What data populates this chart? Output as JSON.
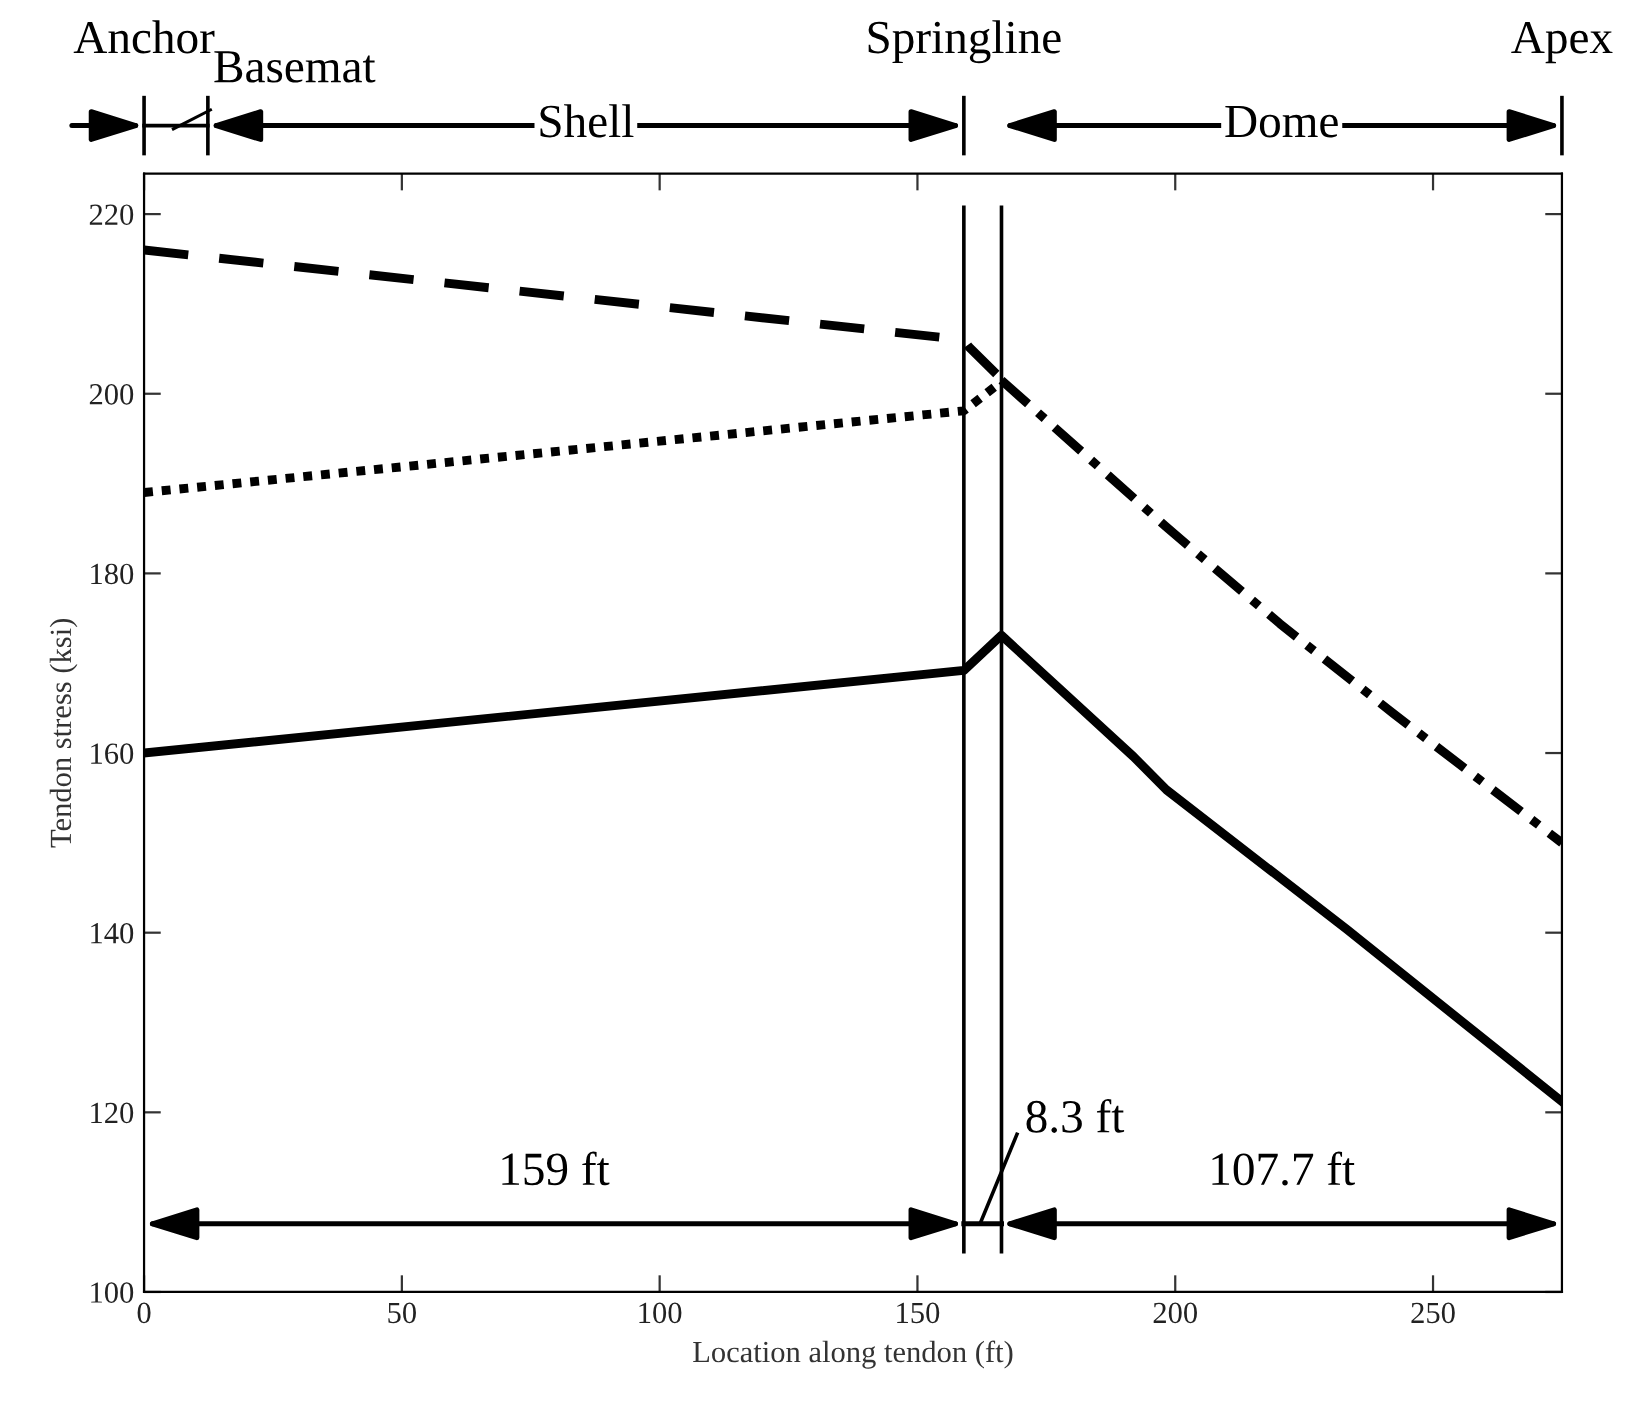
{
  "chart_data": {
    "type": "line",
    "xlabel": "Location along tendon (ft)",
    "ylabel": "Tendon stress (ksi)",
    "xlim": [
      0,
      275
    ],
    "xticks": [
      0,
      50,
      100,
      150,
      200,
      250
    ],
    "ylim": [
      100,
      224.5
    ],
    "yticks": [
      100,
      120,
      140,
      160,
      180,
      200,
      220
    ],
    "grid": false,
    "legend": false,
    "series": [
      {
        "color": "#000000",
        "line_style": "solid",
        "x": [
          0,
          159,
          166.3,
          191.9,
          198.3,
          233.2,
          275
        ],
        "values": [
          160,
          169.2,
          173.1,
          159.6,
          155.9,
          140.4,
          121.2
        ]
      },
      {
        "color": "#000000",
        "line_style": "dashed",
        "x": [
          0,
          159,
          160,
          165.3
        ],
        "values": [
          216,
          206,
          205.2,
          202.2
        ]
      },
      {
        "color": "#000000",
        "line_style": "dotted",
        "x": [
          0,
          159,
          165.3
        ],
        "values": [
          189,
          198.1,
          200.9
        ]
      },
      {
        "color": "#000000",
        "line_style": "dashdot",
        "x": [
          166.3,
          198.2,
          220.3,
          242.3,
          275
        ],
        "values": [
          201.5,
          185.2,
          174.4,
          164.4,
          150
        ]
      }
    ],
    "ref_lines": [
      {
        "axis": "x",
        "value": 159,
        "color": "#000000"
      },
      {
        "axis": "x",
        "value": 166.3,
        "color": "#000000"
      }
    ],
    "annotations": [
      {
        "text": "Anchor",
        "x": 0
      },
      "Basemat",
      "Shell",
      {
        "text": "Springline",
        "x": 159
      },
      "Dome",
      {
        "text": "Apex",
        "x": 275
      },
      "159 ft",
      "8.3 ft",
      "107.7 ft"
    ]
  }
}
